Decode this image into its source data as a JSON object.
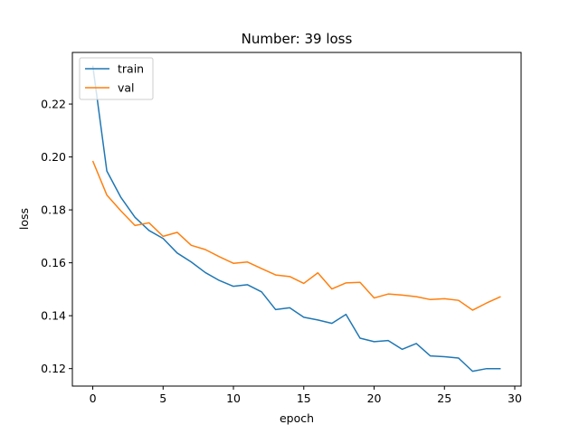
{
  "chart_data": {
    "type": "line",
    "title": "Number: 39 loss",
    "xlabel": "epoch",
    "ylabel": "loss",
    "xlim": [
      -1.45,
      30.45
    ],
    "ylim": [
      0.1134,
      0.2395
    ],
    "xticks": [
      0,
      5,
      10,
      15,
      20,
      25,
      30
    ],
    "yticks": [
      0.12,
      0.14,
      0.16,
      0.18,
      0.2,
      0.22
    ],
    "ytick_labels": [
      "0.12",
      "0.14",
      "0.16",
      "0.18",
      "0.20",
      "0.22"
    ],
    "grid": false,
    "legend": "upper-left",
    "x": [
      0,
      1,
      2,
      3,
      4,
      5,
      6,
      7,
      8,
      9,
      10,
      11,
      12,
      13,
      14,
      15,
      16,
      17,
      18,
      19,
      20,
      21,
      22,
      23,
      24,
      25,
      26,
      27,
      28,
      29
    ],
    "series": [
      {
        "name": "train",
        "color": "#1f77b4",
        "values": [
          0.2345,
          0.1947,
          0.1847,
          0.1772,
          0.1722,
          0.1692,
          0.1637,
          0.1603,
          0.1563,
          0.1533,
          0.1511,
          0.1517,
          0.149,
          0.1423,
          0.143,
          0.1394,
          0.1384,
          0.1371,
          0.1405,
          0.1315,
          0.1302,
          0.1306,
          0.1273,
          0.1295,
          0.1248,
          0.1245,
          0.124,
          0.119,
          0.12,
          0.12
        ]
      },
      {
        "name": "val",
        "color": "#ff7f0e",
        "values": [
          0.1985,
          0.1856,
          0.1796,
          0.1741,
          0.1751,
          0.17,
          0.1715,
          0.1666,
          0.165,
          0.1623,
          0.1598,
          0.1603,
          0.1578,
          0.1554,
          0.1548,
          0.1522,
          0.1562,
          0.1501,
          0.1524,
          0.1526,
          0.1467,
          0.1482,
          0.1478,
          0.1472,
          0.1461,
          0.1464,
          0.1458,
          0.1421,
          0.1448,
          0.1472
        ]
      }
    ]
  }
}
